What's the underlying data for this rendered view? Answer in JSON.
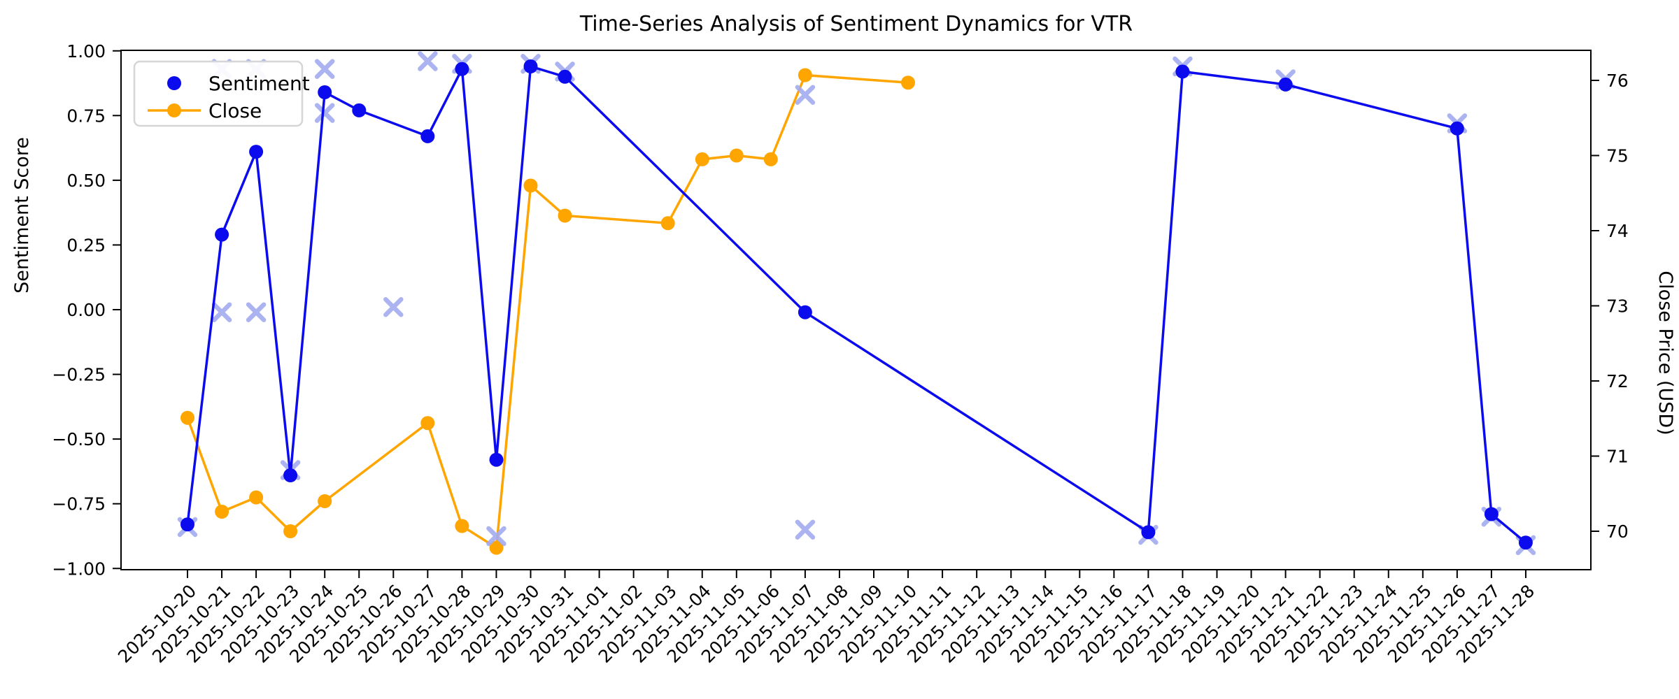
{
  "title": "Time-Series Analysis of Sentiment Dynamics for VTR",
  "legend": {
    "sentiment_label": "Sentiment",
    "close_label": "Close"
  },
  "colors": {
    "sentiment": "#0b0bee",
    "close": "#ffa500",
    "raw_sentiment_marker": "#a3abf0",
    "axis": "#000000",
    "legend_border": "#d5d5d5",
    "background": "#ffffff"
  },
  "chart_data": {
    "type": "line",
    "title": "Time-Series Analysis of Sentiment Dynamics for VTR",
    "xlabel": "",
    "ylabel_left": "Sentiment Score",
    "ylabel_right": "Close Price (USD)",
    "grid": false,
    "legend_position": "upper-left",
    "x_start_date": "2025-10-20",
    "x_tick_labels": [
      "2025-10-20",
      "2025-10-21",
      "2025-10-22",
      "2025-10-23",
      "2025-10-24",
      "2025-10-25",
      "2025-10-26",
      "2025-10-27",
      "2025-10-28",
      "2025-10-29",
      "2025-10-30",
      "2025-10-31",
      "2025-11-01",
      "2025-11-02",
      "2025-11-03",
      "2025-11-04",
      "2025-11-05",
      "2025-11-06",
      "2025-11-07",
      "2025-11-08",
      "2025-11-09",
      "2025-11-10",
      "2025-11-11",
      "2025-11-12",
      "2025-11-13",
      "2025-11-14",
      "2025-11-15",
      "2025-11-16",
      "2025-11-17",
      "2025-11-18",
      "2025-11-19",
      "2025-11-20",
      "2025-11-21",
      "2025-11-22",
      "2025-11-23",
      "2025-11-24",
      "2025-11-25",
      "2025-11-26",
      "2025-11-27",
      "2025-11-28"
    ],
    "y_left": {
      "label": "Sentiment Score",
      "tick_labels": [
        "1.00",
        "0.75",
        "0.50",
        "0.25",
        "0.00",
        "−0.25",
        "−0.50",
        "−0.75",
        "−1.00"
      ],
      "tick_values": [
        1.0,
        0.75,
        0.5,
        0.25,
        0.0,
        -0.25,
        -0.5,
        -0.75,
        -1.0
      ],
      "range": [
        -1.004,
        1.002
      ]
    },
    "y_right": {
      "label": "Close Price (USD)",
      "tick_labels": [
        "70",
        "71",
        "72",
        "73",
        "74",
        "75",
        "76"
      ],
      "tick_values": [
        70,
        71,
        72,
        73,
        74,
        75,
        76
      ],
      "range": [
        69.49,
        76.4
      ]
    },
    "series": [
      {
        "name": "Sentiment",
        "axis": "left",
        "marker": "circle",
        "line": true,
        "points": [
          [
            "2025-10-20",
            -0.83
          ],
          [
            "2025-10-21",
            0.29
          ],
          [
            "2025-10-22",
            0.61
          ],
          [
            "2025-10-23",
            -0.64
          ],
          [
            "2025-10-24",
            0.84
          ],
          [
            "2025-10-25",
            0.77
          ],
          [
            "2025-10-27",
            0.67
          ],
          [
            "2025-10-28",
            0.93
          ],
          [
            "2025-10-29",
            -0.58
          ],
          [
            "2025-10-30",
            0.94
          ],
          [
            "2025-10-31",
            0.9
          ],
          [
            "2025-11-07",
            -0.01
          ],
          [
            "2025-11-17",
            -0.86
          ],
          [
            "2025-11-18",
            0.92
          ],
          [
            "2025-11-21",
            0.87
          ],
          [
            "2025-11-26",
            0.7
          ],
          [
            "2025-11-27",
            -0.79
          ],
          [
            "2025-11-28",
            -0.9
          ]
        ]
      },
      {
        "name": "Close",
        "axis": "right",
        "marker": "circle",
        "line": true,
        "points": [
          [
            "2025-10-20",
            71.51
          ],
          [
            "2025-10-21",
            70.26
          ],
          [
            "2025-10-22",
            70.45
          ],
          [
            "2025-10-23",
            70.0
          ],
          [
            "2025-10-24",
            70.4
          ],
          [
            "2025-10-27",
            71.44
          ],
          [
            "2025-10-28",
            70.07
          ],
          [
            "2025-10-29",
            69.78
          ],
          [
            "2025-10-30",
            74.6
          ],
          [
            "2025-10-31",
            74.2
          ],
          [
            "2025-11-03",
            74.1
          ],
          [
            "2025-11-04",
            74.95
          ],
          [
            "2025-11-05",
            75.0
          ],
          [
            "2025-11-06",
            74.95
          ],
          [
            "2025-11-07",
            76.07
          ],
          [
            "2025-11-10",
            75.97
          ]
        ]
      },
      {
        "name": "Sentiment raw readings",
        "axis": "left",
        "marker": "x",
        "line": false,
        "points": [
          [
            "2025-10-20",
            -0.84
          ],
          [
            "2025-10-21",
            0.93
          ],
          [
            "2025-10-21",
            -0.01
          ],
          [
            "2025-10-22",
            0.93
          ],
          [
            "2025-10-22",
            -0.01
          ],
          [
            "2025-10-23",
            -0.62
          ],
          [
            "2025-10-24",
            0.93
          ],
          [
            "2025-10-24",
            0.76
          ],
          [
            "2025-10-26",
            0.01
          ],
          [
            "2025-10-27",
            0.96
          ],
          [
            "2025-10-28",
            0.95
          ],
          [
            "2025-10-29",
            -0.875
          ],
          [
            "2025-10-30",
            0.95
          ],
          [
            "2025-10-31",
            0.92
          ],
          [
            "2025-11-07",
            0.83
          ],
          [
            "2025-11-07",
            -0.85
          ],
          [
            "2025-11-17",
            -0.87
          ],
          [
            "2025-11-18",
            0.94
          ],
          [
            "2025-11-21",
            0.89
          ],
          [
            "2025-11-26",
            0.72
          ],
          [
            "2025-11-27",
            -0.8
          ],
          [
            "2025-11-28",
            -0.91
          ]
        ]
      }
    ]
  }
}
